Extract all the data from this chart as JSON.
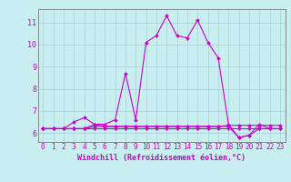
{
  "xlabel": "Windchill (Refroidissement éolien,°C)",
  "background_color": "#c8eef0",
  "grid_color": "#aad4d8",
  "line_color": "#cc00cc",
  "spine_color": "#666666",
  "xlim": [
    -0.5,
    23.5
  ],
  "ylim": [
    5.6,
    11.6
  ],
  "yticks": [
    6,
    7,
    8,
    9,
    10,
    11
  ],
  "xticks": [
    0,
    1,
    2,
    3,
    4,
    5,
    6,
    7,
    8,
    9,
    10,
    11,
    12,
    13,
    14,
    15,
    16,
    17,
    18,
    19,
    20,
    21,
    22,
    23
  ],
  "series": [
    [
      6.2,
      6.2,
      6.2,
      6.5,
      6.7,
      6.4,
      6.4,
      6.6,
      8.7,
      6.6,
      10.1,
      10.4,
      11.3,
      10.4,
      10.3,
      11.1,
      10.1,
      9.4,
      6.4,
      5.8,
      5.9,
      6.4,
      6.2,
      6.2
    ],
    [
      6.2,
      6.2,
      6.2,
      6.2,
      6.2,
      6.4,
      6.3,
      6.3,
      6.3,
      6.3,
      6.3,
      6.3,
      6.3,
      6.3,
      6.3,
      6.3,
      6.3,
      6.3,
      6.35,
      6.35,
      6.35,
      6.35,
      6.35,
      6.35
    ],
    [
      6.2,
      6.2,
      6.2,
      6.2,
      6.2,
      6.3,
      6.3,
      6.3,
      6.3,
      6.3,
      6.3,
      6.3,
      6.3,
      6.3,
      6.3,
      6.3,
      6.3,
      6.3,
      6.3,
      5.8,
      5.9,
      6.2,
      6.2,
      6.2
    ],
    [
      6.2,
      6.2,
      6.2,
      6.2,
      6.2,
      6.2,
      6.2,
      6.2,
      6.2,
      6.2,
      6.2,
      6.2,
      6.2,
      6.2,
      6.2,
      6.2,
      6.2,
      6.2,
      6.2,
      6.2,
      6.2,
      6.2,
      6.2,
      6.2
    ]
  ],
  "xlabel_fontsize": 6,
  "tick_fontsize": 5.5,
  "marker_size": 2.0,
  "line_width": 0.8
}
